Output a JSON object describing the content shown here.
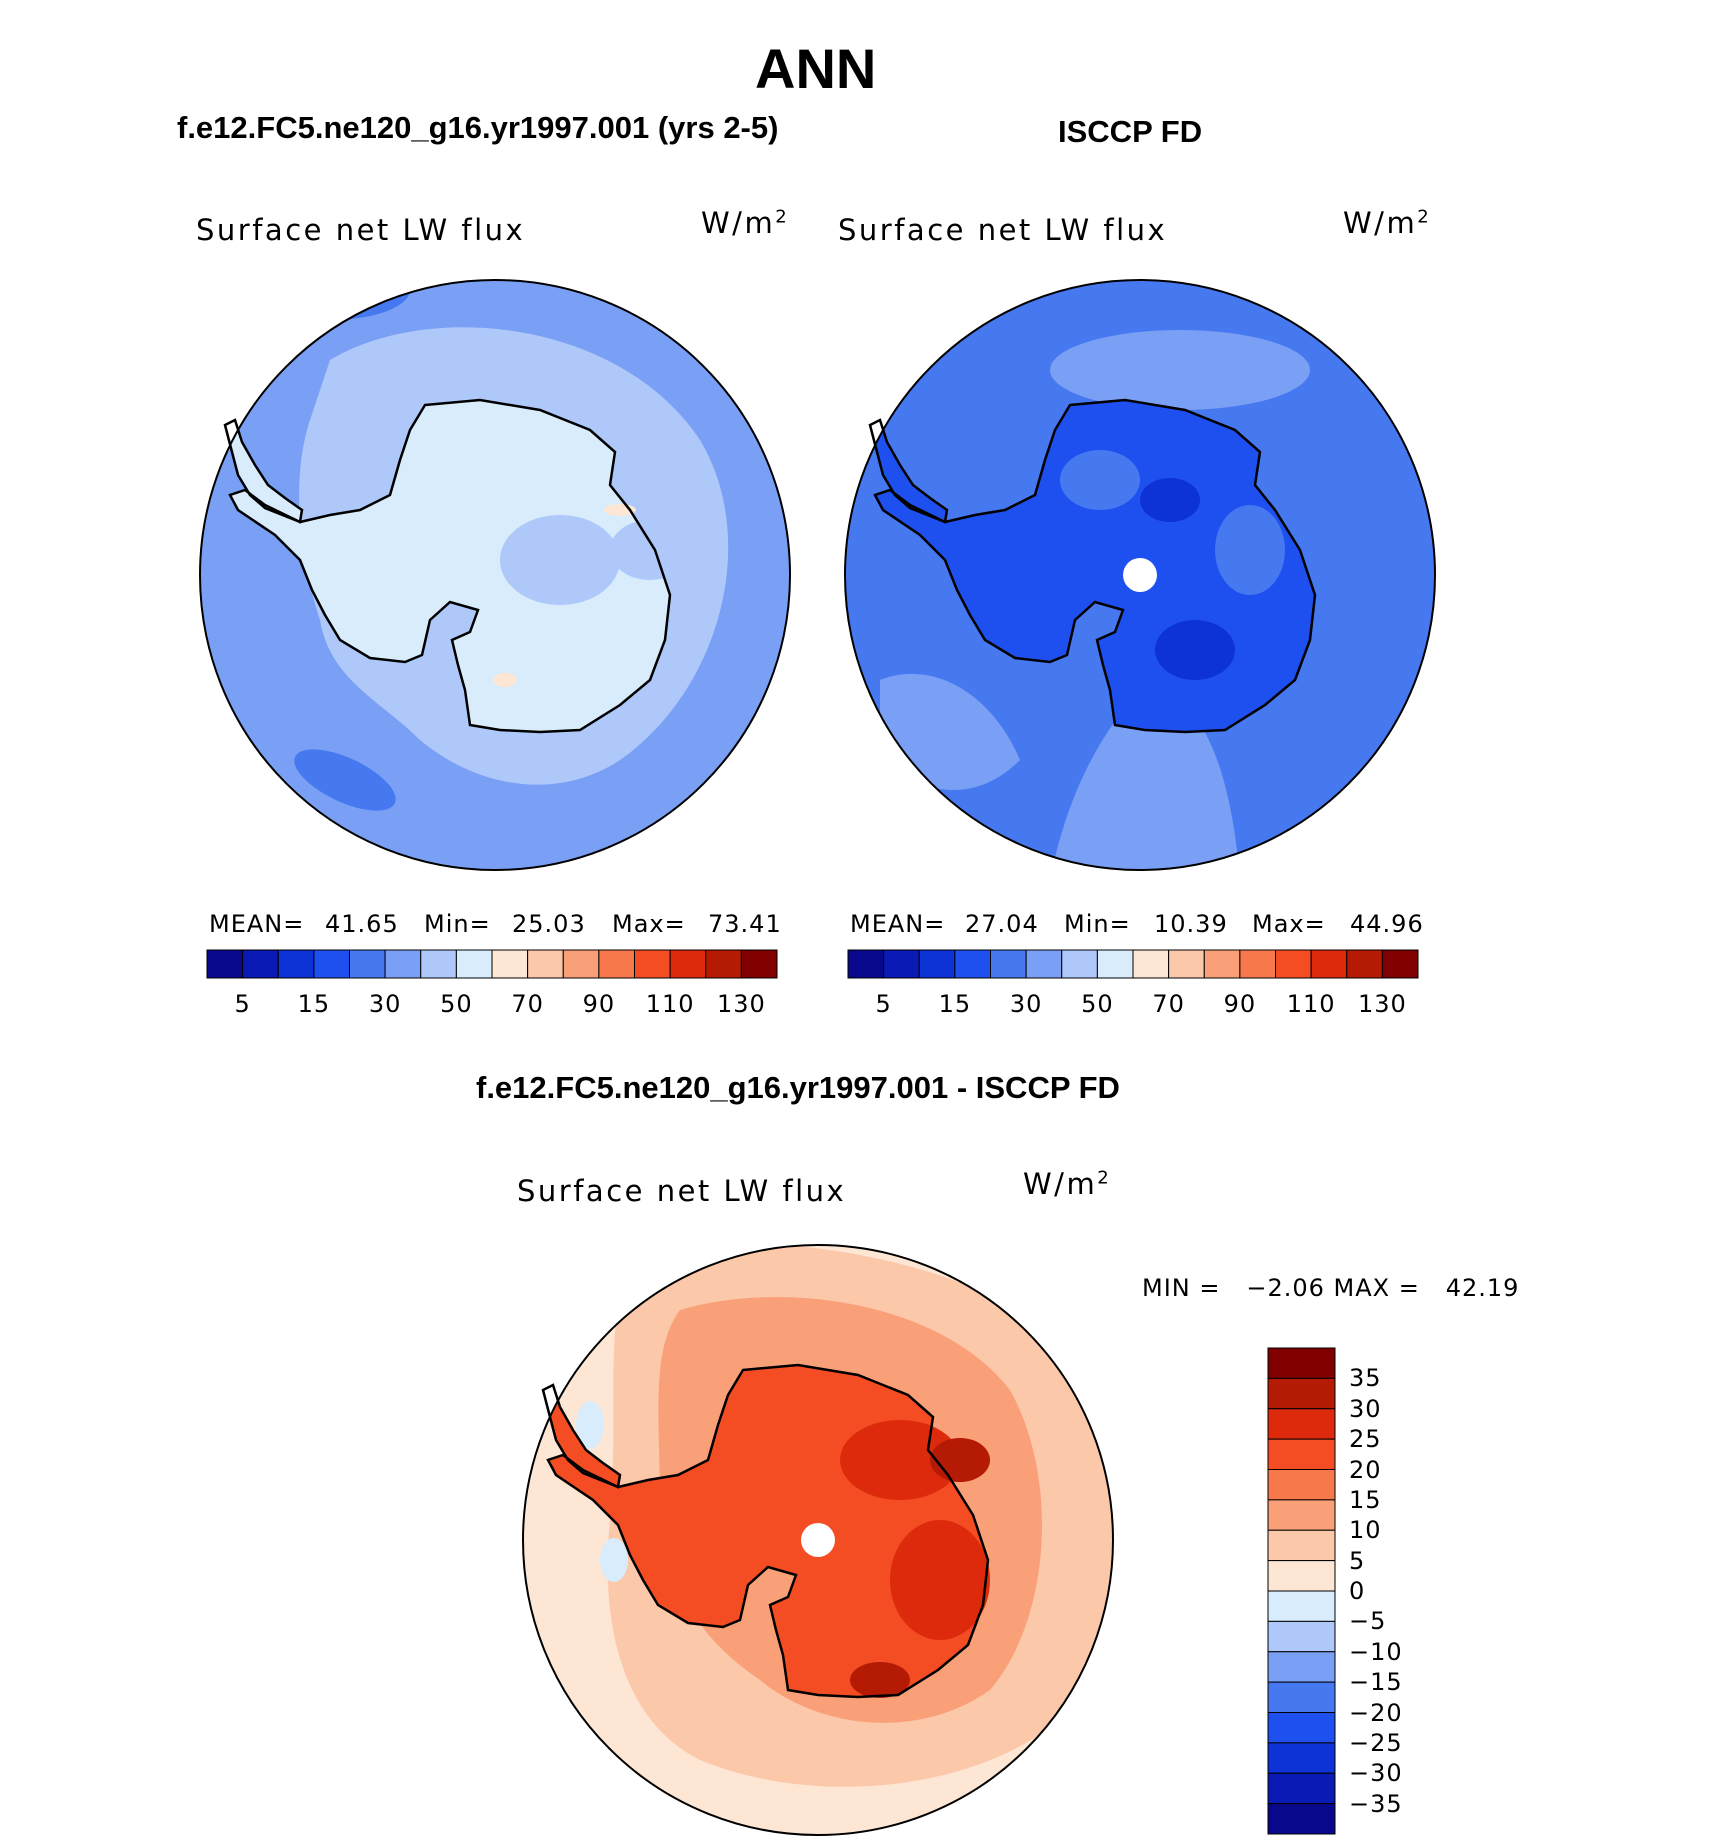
{
  "page": {
    "title": "ANN",
    "left_panel_title": "f.e12.FC5.ne120_g16.yr1997.001 (yrs 2-5)",
    "right_panel_title": "ISCCP FD",
    "diff_panel_title": "f.e12.FC5.ne120_g16.yr1997.001 - ISCCP FD"
  },
  "panels": {
    "model": {
      "variable": "Surface net LW flux",
      "units": "W/m",
      "units_sup": "2",
      "mean_label": "MEAN=",
      "mean_value": "41.65",
      "min_label": "Min=",
      "min_value": "25.03",
      "max_label": "Max=",
      "max_value": "73.41"
    },
    "obs": {
      "variable": "Surface net LW flux",
      "units": "W/m",
      "units_sup": "2",
      "mean_label": "MEAN=",
      "mean_value": "27.04",
      "min_label": "Min=",
      "min_value": "10.39",
      "max_label": "Max=",
      "max_value": "44.96"
    },
    "diff": {
      "variable": "Surface net LW flux",
      "units": "W/m",
      "units_sup": "2",
      "minmax_text": "MIN =   −2.06 MAX =   42.19"
    }
  },
  "colorbar_main": {
    "colors": [
      "#08088c",
      "#0a1ab4",
      "#0d32d6",
      "#1e50f0",
      "#4678f0",
      "#7aa0f5",
      "#aec8fa",
      "#d8ecfc",
      "#fde7d4",
      "#fcc8aa",
      "#faa078",
      "#f7784b",
      "#f44c23",
      "#de2a0c",
      "#b41a04",
      "#800000"
    ],
    "labels": [
      "5",
      "15",
      "30",
      "50",
      "70",
      "90",
      "110",
      "130"
    ]
  },
  "colorbar_diff": {
    "colors": [
      "#800000",
      "#b41a04",
      "#de2a0c",
      "#f44c23",
      "#f7784b",
      "#faa078",
      "#fcc8aa",
      "#fde7d4",
      "#d8ecfc",
      "#aec8fa",
      "#7aa0f5",
      "#4678f0",
      "#1e50f0",
      "#0d32d6",
      "#0a1ab4",
      "#08088c"
    ],
    "labels": [
      "35",
      "30",
      "25",
      "20",
      "15",
      "10",
      "5",
      "0",
      "−5",
      "−10",
      "−15",
      "−20",
      "−25",
      "−30",
      "−35"
    ]
  }
}
